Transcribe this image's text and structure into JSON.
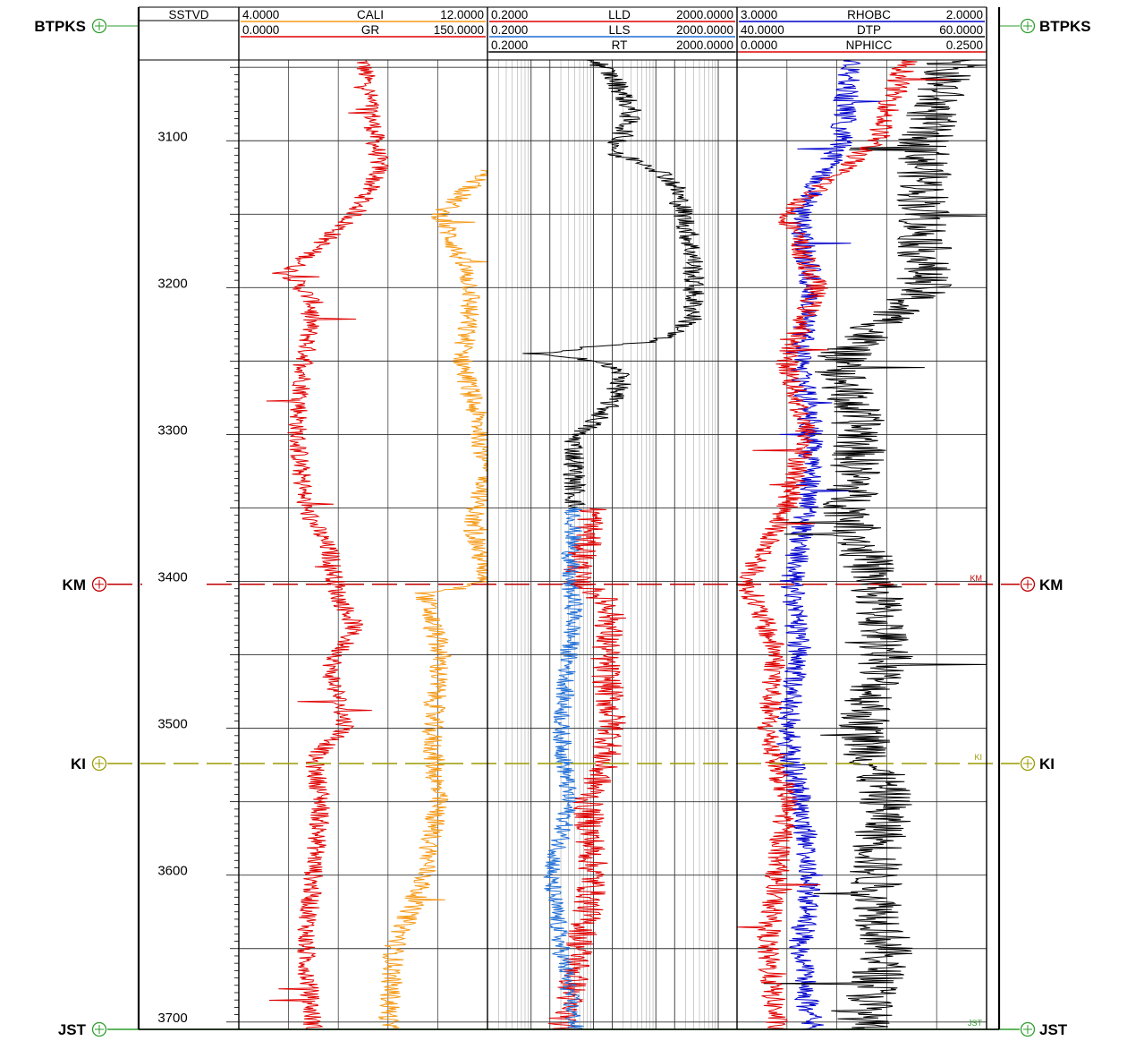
{
  "chart_data": {
    "type": "line",
    "depth_curve": "SSTVD",
    "depth_range": [
      3045,
      3705
    ],
    "depth_ticks": [
      3100,
      3200,
      3300,
      3400,
      3500,
      3600,
      3700
    ],
    "tracks": [
      {
        "curves": [
          {
            "name": "CALI",
            "min": "4.0000",
            "max": "12.0000",
            "color": "#f59a17"
          },
          {
            "name": "GR",
            "min": "0.0000",
            "max": "150.0000",
            "color": "#e00000"
          }
        ]
      },
      {
        "scale": "log",
        "curves": [
          {
            "name": "LLD",
            "min": "0.2000",
            "max": "2000.0000",
            "color": "#e00000"
          },
          {
            "name": "LLS",
            "min": "0.2000",
            "max": "2000.0000",
            "color": "#1f6fd6"
          },
          {
            "name": "RT",
            "min": "0.2000",
            "max": "2000.0000",
            "color": "#000000"
          }
        ]
      },
      {
        "curves": [
          {
            "name": "RHOBC",
            "min": "3.0000",
            "max": "2.0000",
            "color": "#0000cc"
          },
          {
            "name": "DTP",
            "min": "40.0000",
            "max": "60.0000",
            "color": "#000000"
          },
          {
            "name": "NPHICC",
            "min": "0.0000",
            "max": "0.2500",
            "color": "#e00000"
          }
        ]
      }
    ],
    "formation_tops": [
      {
        "name": "BTPKS",
        "depth": 3045,
        "color": "#2e9e2e"
      },
      {
        "name": "KM",
        "depth": 3402,
        "color": "#c00000"
      },
      {
        "name": "KI",
        "depth": 3524,
        "color": "#9a9a00"
      },
      {
        "name": "JST",
        "depth": 3705,
        "color": "#2e9e2e"
      }
    ],
    "series": [
      {
        "name": "GR",
        "depth": [
          3045,
          3080,
          3120,
          3150,
          3170,
          3190,
          3210,
          3250,
          3300,
          3350,
          3380,
          3410,
          3430,
          3460,
          3500,
          3520,
          3550,
          3600,
          3650,
          3705
        ],
        "values": [
          75,
          80,
          85,
          70,
          50,
          30,
          45,
          40,
          35,
          40,
          55,
          60,
          70,
          55,
          65,
          45,
          50,
          45,
          40,
          45
        ]
      },
      {
        "name": "CALI",
        "depth": [
          3120,
          3150,
          3200,
          3250,
          3300,
          3330,
          3360,
          3400,
          3410,
          3450,
          3500,
          3550,
          3600,
          3650,
          3705
        ],
        "values": [
          12.0,
          10.5,
          11.5,
          11.2,
          11.8,
          12.0,
          11.5,
          12.0,
          10.0,
          10.5,
          10.2,
          10.4,
          10.0,
          9.0,
          8.8
        ]
      },
      {
        "name": "RT",
        "depth": [
          3045,
          3080,
          3110,
          3130,
          3180,
          3220,
          3240,
          3245,
          3260,
          3300,
          3350
        ],
        "values": [
          10,
          40,
          20,
          200,
          400,
          400,
          8,
          0.3,
          30,
          5,
          5
        ]
      },
      {
        "name": "LLD",
        "depth": [
          3350,
          3400,
          3420,
          3450,
          3500,
          3550,
          3600,
          3650,
          3705
        ],
        "values": [
          10,
          5,
          20,
          15,
          20,
          8,
          10,
          6,
          3
        ]
      },
      {
        "name": "LLS",
        "depth": [
          3350,
          3400,
          3420,
          3450,
          3500,
          3550,
          3600,
          3650,
          3705
        ],
        "values": [
          5,
          4,
          5,
          4,
          3,
          4,
          2,
          3,
          5
        ]
      },
      {
        "name": "RHOBC",
        "depth": [
          3045,
          3100,
          3150,
          3200,
          3250,
          3300,
          3350,
          3400,
          3450,
          3500,
          3550,
          3600,
          3650,
          3705
        ],
        "values": [
          2.55,
          2.58,
          2.75,
          2.7,
          2.75,
          2.7,
          2.72,
          2.78,
          2.75,
          2.8,
          2.75,
          2.7,
          2.75,
          2.7
        ]
      },
      {
        "name": "DTP",
        "depth": [
          3045,
          3100,
          3150,
          3200,
          3250,
          3300,
          3350,
          3400,
          3450,
          3500,
          3550,
          3600,
          3650,
          3705
        ],
        "values": [
          57,
          55,
          55,
          55,
          48,
          50,
          49,
          51,
          52,
          50,
          52,
          51,
          52,
          50
        ]
      },
      {
        "name": "NPHICC",
        "depth": [
          3045,
          3100,
          3150,
          3200,
          3250,
          3300,
          3350,
          3400,
          3450,
          3500,
          3550,
          3600,
          3650,
          3705
        ],
        "values": [
          0.17,
          0.14,
          0.05,
          0.08,
          0.05,
          0.07,
          0.05,
          0.01,
          0.04,
          0.03,
          0.05,
          0.04,
          0.03,
          0.04
        ]
      }
    ]
  }
}
